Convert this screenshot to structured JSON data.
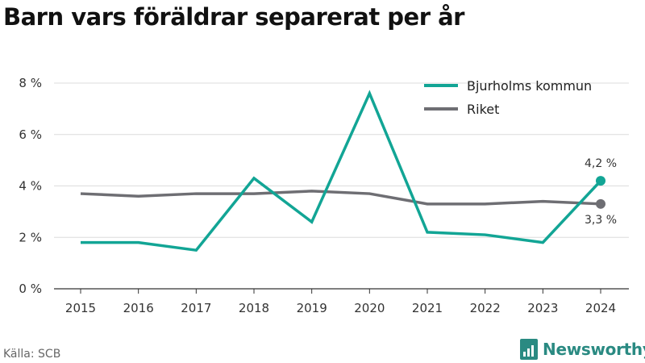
{
  "title": "Barn vars föräldrar separerat per år",
  "source": "Källa: SCB",
  "brand": "Newsworthy",
  "colors": {
    "bjurholm": "#12a595",
    "riket": "#6e6e73",
    "grid": "#dcdcdc",
    "axis": "#333333",
    "brand": "#2a8a82"
  },
  "chart_data": {
    "type": "line",
    "title": "Barn vars föräldrar separerat per år",
    "categories": [
      "2015",
      "2016",
      "2017",
      "2018",
      "2019",
      "2020",
      "2021",
      "2022",
      "2023",
      "2024"
    ],
    "y_ticks": [
      "0 %",
      "2 %",
      "4 %",
      "6 %",
      "8 %"
    ],
    "ylim": [
      0,
      8
    ],
    "grid": true,
    "legend_position": "top-right",
    "series": [
      {
        "name": "Bjurholms kommun",
        "color": "#12a595",
        "values": [
          1.8,
          1.8,
          1.5,
          4.3,
          2.6,
          7.6,
          2.2,
          2.1,
          1.8,
          4.2
        ],
        "end_label": "4,2 %"
      },
      {
        "name": "Riket",
        "color": "#6e6e73",
        "values": [
          3.7,
          3.6,
          3.7,
          3.7,
          3.8,
          3.7,
          3.3,
          3.3,
          3.4,
          3.3
        ],
        "end_label": "3,3 %"
      }
    ]
  }
}
